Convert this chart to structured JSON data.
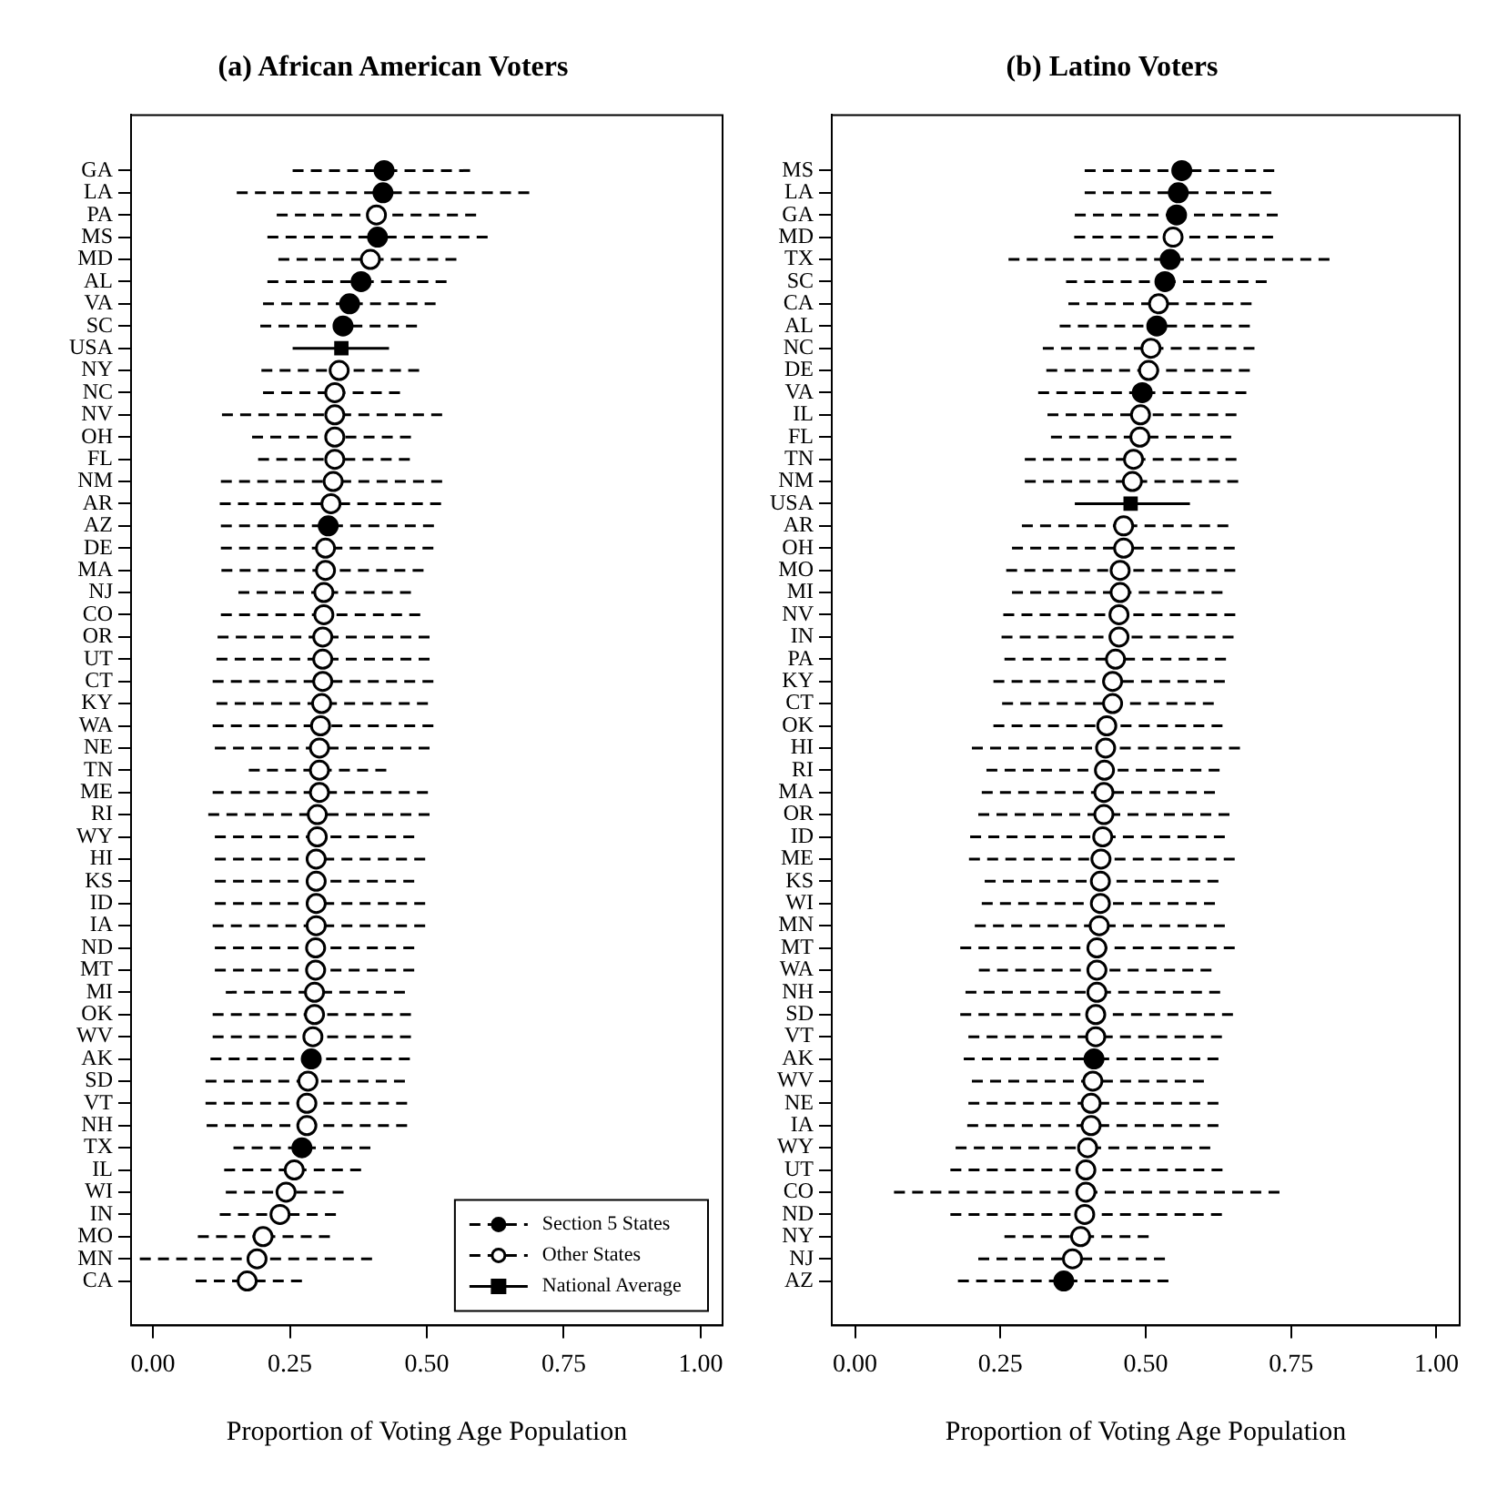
{
  "chart_data": [
    {
      "type": "scatter",
      "orientation": "horizontal",
      "title": "(a) African American Voters",
      "xlabel": "Proportion of Voting Age Population",
      "xlim": [
        -0.04,
        1.04
      ],
      "xticks": [
        {
          "value": 0,
          "label": "0.00"
        },
        {
          "value": 0.25,
          "label": "0.25"
        },
        {
          "value": 0.5,
          "label": "0.50"
        },
        {
          "value": 0.75,
          "label": "0.75"
        },
        {
          "value": 1,
          "label": "1.00"
        }
      ],
      "grid": false,
      "legend": "bottom right",
      "categories": [
        "GA",
        "LA",
        "PA",
        "MS",
        "MD",
        "AL",
        "VA",
        "SC",
        "USA",
        "NY",
        "NC",
        "NV",
        "OH",
        "FL",
        "NM",
        "AR",
        "AZ",
        "DE",
        "MA",
        "NJ",
        "CO",
        "OR",
        "UT",
        "CT",
        "KY",
        "WA",
        "NE",
        "TN",
        "ME",
        "RI",
        "WY",
        "HI",
        "KS",
        "ID",
        "IA",
        "ND",
        "MT",
        "MI",
        "OK",
        "WV",
        "AK",
        "SD",
        "VT",
        "NH",
        "TX",
        "IL",
        "WI",
        "IN",
        "MO",
        "MN",
        "CA"
      ],
      "series": [
        {
          "name": "Section 5 States",
          "color": "#000000",
          "marker": "circle",
          "line_style": "dashed",
          "values": [
            0.422,
            0.42,
            null,
            0.41,
            null,
            0.38,
            0.359,
            0.347,
            null,
            null,
            null,
            null,
            null,
            null,
            null,
            null,
            0.32,
            null,
            null,
            null,
            null,
            null,
            null,
            null,
            null,
            null,
            null,
            null,
            null,
            null,
            null,
            null,
            null,
            null,
            null,
            null,
            null,
            null,
            null,
            null,
            0.289,
            null,
            null,
            null,
            0.272,
            null,
            null,
            null,
            null,
            null,
            null
          ],
          "errors": [
            [
              0.255,
              0.579
            ],
            [
              0.153,
              0.687
            ],
            null,
            [
              0.209,
              0.611
            ],
            null,
            [
              0.209,
              0.536
            ],
            [
              0.201,
              0.516
            ],
            [
              0.196,
              0.482
            ],
            null,
            null,
            null,
            null,
            null,
            null,
            null,
            null,
            [
              0.124,
              0.513
            ],
            null,
            null,
            null,
            null,
            null,
            null,
            null,
            null,
            null,
            null,
            null,
            null,
            null,
            null,
            null,
            null,
            null,
            null,
            null,
            null,
            null,
            null,
            null,
            [
              0.105,
              0.469
            ],
            null,
            null,
            null,
            [
              0.147,
              0.397
            ],
            null,
            null,
            null,
            null,
            null,
            null
          ]
        },
        {
          "name": "Other States",
          "color": "#000000",
          "colors": [
            "#ffffff",
            "#ffffff",
            "#ffffff",
            "#ffffff",
            "#ffffff",
            "#ffffff",
            "#ffffff",
            "#ffffff",
            "#ffffff",
            "#ffffff",
            "#ffffff",
            "#ffffff",
            "#ffffff",
            "#ffffff",
            "#ffffff",
            "#ffffff",
            "#ffffff",
            "#ffffff",
            "#ffffff",
            "#ffffff",
            "#ffffff",
            "#ffffff",
            "#ffffff",
            "#ffffff",
            "#ffffff",
            "#ffffff",
            "#ffffff",
            "#ffffff",
            "#ffffff",
            "#ffffff",
            "#ffffff",
            "#ffffff",
            "#ffffff",
            "#ffffff",
            "#ffffff",
            "#ffffff",
            "#ffffff",
            "#ffffff",
            "#ffffff",
            "#ffffff",
            "#ffffff",
            "#ffffff",
            "#ffffff",
            "#ffffff",
            "#ffffff",
            "#ffffff",
            "#ffffff",
            "#ffffff",
            "#ffffff",
            "#ffffff",
            "#ffffff"
          ],
          "marker": "circle",
          "line_style": "dashed",
          "values": [
            null,
            null,
            0.408,
            null,
            0.397,
            null,
            null,
            null,
            null,
            0.34,
            0.332,
            0.332,
            0.332,
            0.332,
            0.329,
            0.325,
            null,
            0.315,
            0.315,
            0.312,
            0.312,
            0.31,
            0.31,
            0.31,
            0.308,
            0.306,
            0.304,
            0.304,
            0.304,
            0.3,
            0.3,
            0.298,
            0.298,
            0.298,
            0.298,
            0.297,
            0.297,
            0.295,
            0.295,
            0.292,
            null,
            0.283,
            0.281,
            0.281,
            null,
            0.258,
            0.243,
            0.232,
            0.201,
            0.19,
            0.172
          ],
          "errors": [
            null,
            null,
            [
              0.226,
              0.59
            ],
            null,
            [
              0.229,
              0.554
            ],
            null,
            null,
            null,
            null,
            [
              0.198,
              0.486
            ],
            [
              0.201,
              0.451
            ],
            [
              0.126,
              0.528
            ],
            [
              0.181,
              0.471
            ],
            [
              0.192,
              0.469
            ],
            [
              0.124,
              0.528
            ],
            [
              0.122,
              0.526
            ],
            null,
            [
              0.124,
              0.512
            ],
            [
              0.125,
              0.494
            ],
            [
              0.156,
              0.471
            ],
            [
              0.124,
              0.488
            ],
            [
              0.118,
              0.505
            ],
            [
              0.116,
              0.505
            ],
            [
              0.109,
              0.512
            ],
            [
              0.116,
              0.502
            ],
            [
              0.109,
              0.512
            ],
            [
              0.113,
              0.505
            ],
            [
              0.175,
              0.426
            ],
            [
              0.109,
              0.502
            ],
            [
              0.101,
              0.505
            ],
            [
              0.113,
              0.477
            ],
            [
              0.113,
              0.497
            ],
            [
              0.113,
              0.477
            ],
            [
              0.113,
              0.497
            ],
            [
              0.109,
              0.497
            ],
            [
              0.113,
              0.477
            ],
            [
              0.113,
              0.477
            ],
            [
              0.133,
              0.46
            ],
            [
              0.109,
              0.471
            ],
            [
              0.109,
              0.471
            ],
            null,
            [
              0.096,
              0.46
            ],
            [
              0.096,
              0.464
            ],
            [
              0.098,
              0.464
            ],
            null,
            [
              0.13,
              0.38
            ],
            [
              0.133,
              0.348
            ],
            [
              0.122,
              0.334
            ],
            [
              0.082,
              0.323
            ],
            [
              -0.024,
              0.4
            ],
            [
              0.078,
              0.272
            ]
          ]
        },
        {
          "name": "National Average",
          "color": "#000000",
          "marker": "square",
          "line_style": "solid",
          "values": [
            null,
            null,
            null,
            null,
            null,
            null,
            null,
            null,
            0.344,
            null,
            null,
            null,
            null,
            null,
            null,
            null,
            null,
            null,
            null,
            null,
            null,
            null,
            null,
            null,
            null,
            null,
            null,
            null,
            null,
            null,
            null,
            null,
            null,
            null,
            null,
            null,
            null,
            null,
            null,
            null,
            null,
            null,
            null,
            null,
            null,
            null,
            null,
            null,
            null,
            null,
            null
          ],
          "errors": [
            null,
            null,
            null,
            null,
            null,
            null,
            null,
            null,
            [
              0.255,
              0.431
            ],
            null,
            null,
            null,
            null,
            null,
            null,
            null,
            null,
            null,
            null,
            null,
            null,
            null,
            null,
            null,
            null,
            null,
            null,
            null,
            null,
            null,
            null,
            null,
            null,
            null,
            null,
            null,
            null,
            null,
            null,
            null,
            null,
            null,
            null,
            null,
            null,
            null,
            null,
            null,
            null,
            null,
            null
          ]
        }
      ]
    },
    {
      "type": "scatter",
      "orientation": "horizontal",
      "title": "(b) Latino Voters",
      "xlabel": "Proportion of Voting Age Population",
      "xlim": [
        -0.04,
        1.04
      ],
      "xticks": [
        {
          "value": 0,
          "label": "0.00"
        },
        {
          "value": 0.25,
          "label": "0.25"
        },
        {
          "value": 0.5,
          "label": "0.50"
        },
        {
          "value": 0.75,
          "label": "0.75"
        },
        {
          "value": 1,
          "label": "1.00"
        }
      ],
      "grid": false,
      "categories": [
        "MS",
        "LA",
        "GA",
        "MD",
        "TX",
        "SC",
        "CA",
        "AL",
        "NC",
        "DE",
        "VA",
        "IL",
        "FL",
        "TN",
        "NM",
        "USA",
        "AR",
        "OH",
        "MO",
        "MI",
        "NV",
        "IN",
        "PA",
        "KY",
        "CT",
        "OK",
        "HI",
        "RI",
        "MA",
        "OR",
        "ID",
        "ME",
        "KS",
        "WI",
        "MN",
        "MT",
        "WA",
        "NH",
        "SD",
        "VT",
        "AK",
        "WV",
        "NE",
        "IA",
        "WY",
        "UT",
        "CO",
        "ND",
        "NY",
        "NJ",
        "AZ"
      ],
      "series": [
        {
          "color": "#000000",
          "marker": "circle",
          "line_style": "dashed",
          "values": [
            0.562,
            0.556,
            0.553,
            null,
            0.542,
            0.533,
            null,
            0.519,
            null,
            null,
            0.494,
            null,
            null,
            null,
            null,
            null,
            null,
            null,
            null,
            null,
            null,
            null,
            null,
            null,
            null,
            null,
            null,
            null,
            null,
            null,
            null,
            null,
            null,
            null,
            null,
            null,
            null,
            null,
            null,
            null,
            0.411,
            null,
            null,
            null,
            null,
            null,
            null,
            null,
            null,
            null,
            0.359
          ],
          "errors": [
            [
              0.395,
              0.721
            ],
            [
              0.395,
              0.716
            ],
            [
              0.378,
              0.727
            ],
            null,
            [
              0.264,
              0.816
            ],
            [
              0.363,
              0.708
            ],
            null,
            [
              0.352,
              0.679
            ],
            null,
            null,
            [
              0.315,
              0.673
            ],
            null,
            null,
            null,
            null,
            null,
            null,
            null,
            null,
            null,
            null,
            null,
            null,
            null,
            null,
            null,
            null,
            null,
            null,
            null,
            null,
            null,
            null,
            null,
            null,
            null,
            null,
            null,
            null,
            null,
            [
              0.187,
              0.625
            ],
            null,
            null,
            null,
            null,
            null,
            null,
            null,
            null,
            null,
            [
              0.177,
              0.539
            ]
          ]
        },
        {
          "color": "#000000",
          "colors": [
            "#ffffff",
            "#ffffff",
            "#ffffff",
            "#ffffff",
            "#ffffff",
            "#ffffff",
            "#ffffff",
            "#ffffff",
            "#ffffff",
            "#ffffff",
            "#ffffff",
            "#ffffff",
            "#ffffff",
            "#ffffff",
            "#ffffff",
            "#ffffff",
            "#ffffff",
            "#ffffff",
            "#ffffff",
            "#ffffff",
            "#ffffff",
            "#ffffff",
            "#ffffff",
            "#ffffff",
            "#ffffff",
            "#ffffff",
            "#ffffff",
            "#ffffff",
            "#ffffff",
            "#ffffff",
            "#ffffff",
            "#ffffff",
            "#ffffff",
            "#ffffff",
            "#ffffff",
            "#ffffff",
            "#ffffff",
            "#ffffff",
            "#ffffff",
            "#ffffff",
            "#ffffff",
            "#ffffff",
            "#ffffff",
            "#ffffff",
            "#ffffff",
            "#ffffff",
            "#ffffff",
            "#ffffff",
            "#ffffff",
            "#ffffff",
            "#ffffff"
          ],
          "marker": "circle",
          "line_style": "dashed",
          "values": [
            null,
            null,
            null,
            0.547,
            null,
            null,
            0.522,
            null,
            0.509,
            0.505,
            null,
            0.491,
            0.49,
            0.479,
            0.477,
            null,
            0.462,
            0.462,
            0.456,
            0.456,
            0.454,
            0.454,
            0.448,
            0.443,
            0.443,
            0.433,
            0.431,
            0.429,
            0.428,
            0.428,
            0.426,
            0.423,
            0.422,
            0.422,
            0.42,
            0.416,
            0.416,
            0.416,
            0.414,
            0.414,
            null,
            0.409,
            0.406,
            0.406,
            0.4,
            0.397,
            0.397,
            0.395,
            0.388,
            0.374,
            null
          ],
          "errors": [
            null,
            null,
            null,
            [
              0.377,
              0.719
            ],
            null,
            null,
            [
              0.367,
              0.682
            ],
            null,
            [
              0.323,
              0.687
            ],
            [
              0.329,
              0.679
            ],
            null,
            [
              0.331,
              0.656
            ],
            [
              0.337,
              0.647
            ],
            [
              0.292,
              0.656
            ],
            [
              0.292,
              0.659
            ],
            null,
            [
              0.287,
              0.642
            ],
            [
              0.27,
              0.653
            ],
            [
              0.26,
              0.654
            ],
            [
              0.27,
              0.632
            ],
            [
              0.255,
              0.654
            ],
            [
              0.252,
              0.651
            ],
            [
              0.257,
              0.638
            ],
            [
              0.238,
              0.636
            ],
            [
              0.253,
              0.617
            ],
            [
              0.238,
              0.632
            ],
            [
              0.201,
              0.662
            ],
            [
              0.226,
              0.627
            ],
            [
              0.218,
              0.619
            ],
            [
              0.212,
              0.644
            ],
            [
              0.198,
              0.636
            ],
            [
              0.196,
              0.653
            ],
            [
              0.223,
              0.625
            ],
            [
              0.218,
              0.619
            ],
            [
              0.206,
              0.636
            ],
            [
              0.181,
              0.653
            ],
            [
              0.213,
              0.613
            ],
            [
              0.19,
              0.628
            ],
            [
              0.181,
              0.65
            ],
            [
              0.195,
              0.631
            ],
            null,
            [
              0.201,
              0.6
            ],
            [
              0.195,
              0.625
            ],
            [
              0.193,
              0.625
            ],
            [
              0.173,
              0.611
            ],
            [
              0.164,
              0.632
            ],
            [
              0.067,
              0.73
            ],
            [
              0.164,
              0.631
            ],
            [
              0.257,
              0.505
            ],
            [
              0.212,
              0.533
            ],
            null
          ]
        },
        {
          "color": "#000000",
          "marker": "square",
          "line_style": "solid",
          "values": [
            null,
            null,
            null,
            null,
            null,
            null,
            null,
            null,
            null,
            null,
            null,
            null,
            null,
            null,
            null,
            0.474,
            null,
            null,
            null,
            null,
            null,
            null,
            null,
            null,
            null,
            null,
            null,
            null,
            null,
            null,
            null,
            null,
            null,
            null,
            null,
            null,
            null,
            null,
            null,
            null,
            null,
            null,
            null,
            null,
            null,
            null,
            null,
            null,
            null,
            null,
            null
          ],
          "errors": [
            null,
            null,
            null,
            null,
            null,
            null,
            null,
            null,
            null,
            null,
            null,
            null,
            null,
            null,
            null,
            [
              0.378,
              0.576
            ],
            null,
            null,
            null,
            null,
            null,
            null,
            null,
            null,
            null,
            null,
            null,
            null,
            null,
            null,
            null,
            null,
            null,
            null,
            null,
            null,
            null,
            null,
            null,
            null,
            null,
            null,
            null,
            null,
            null,
            null,
            null,
            null,
            null,
            null,
            null
          ]
        }
      ]
    }
  ]
}
